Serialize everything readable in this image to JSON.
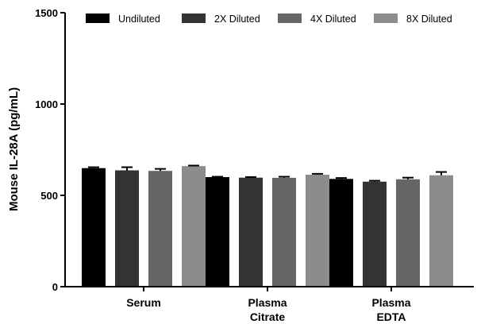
{
  "chart_data": {
    "type": "bar",
    "title": "",
    "xlabel": "",
    "ylabel": "Mouse IL-28A (pg/mL)",
    "ylim": [
      0,
      1500
    ],
    "yticks": [
      0,
      500,
      1000,
      1500
    ],
    "grid": false,
    "legend_position": "top",
    "categories": [
      [
        "Serum"
      ],
      [
        "Plasma",
        "Citrate"
      ],
      [
        "Plasma",
        "EDTA"
      ]
    ],
    "series": [
      {
        "name": "Undiluted",
        "color": "#000000",
        "values": [
          649,
          600,
          590
        ],
        "errors": [
          5,
          2,
          5
        ]
      },
      {
        "name": "2X Diluted",
        "color": "#333333",
        "values": [
          637,
          597,
          575
        ],
        "errors": [
          17,
          3,
          5
        ]
      },
      {
        "name": "4X Diluted",
        "color": "#666666",
        "values": [
          634,
          596,
          588
        ],
        "errors": [
          11,
          6,
          9
        ]
      },
      {
        "name": "8X Diluted",
        "color": "#8c8c8c",
        "values": [
          660,
          613,
          610
        ],
        "errors": [
          3,
          5,
          18
        ]
      }
    ]
  }
}
